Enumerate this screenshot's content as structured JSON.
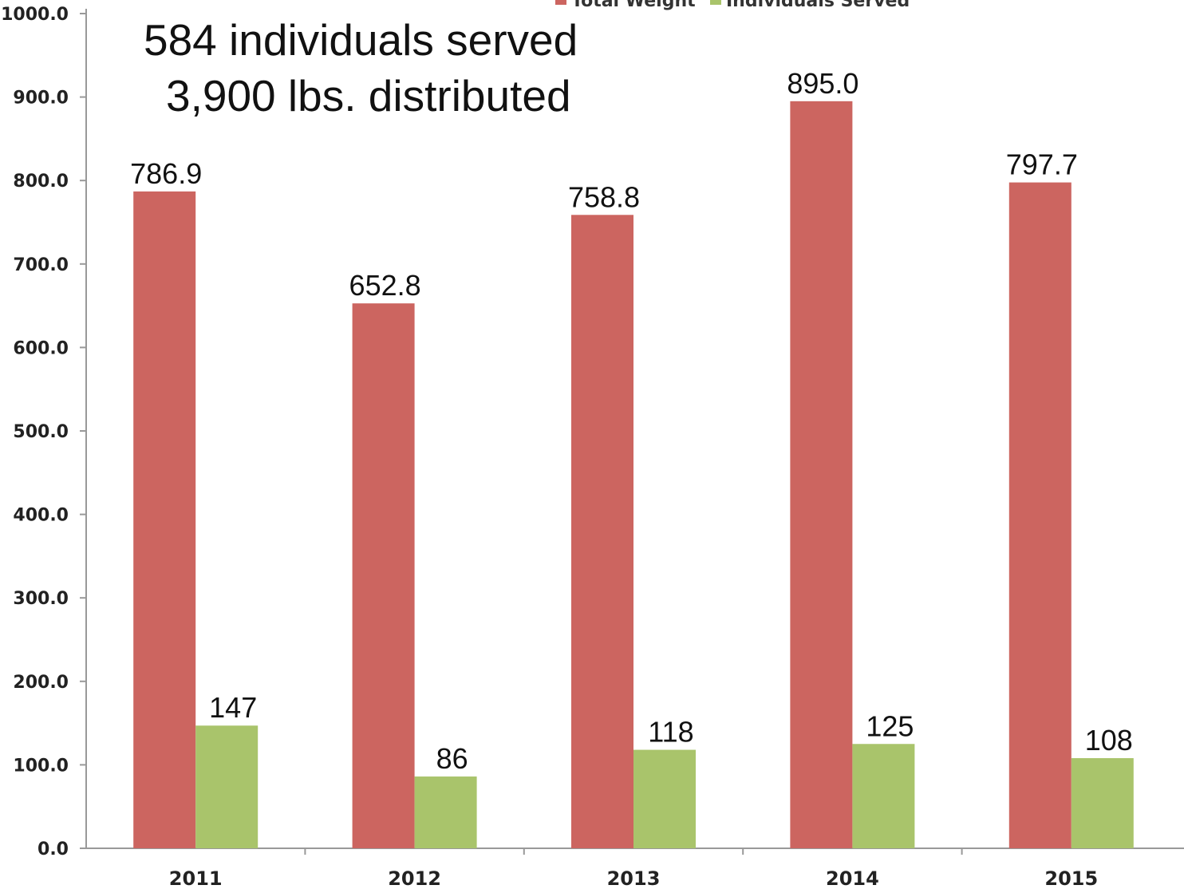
{
  "annotation": {
    "line1": "584 individuals served",
    "line2": "3,900 lbs. distributed"
  },
  "colors": {
    "total_weight": "#cc6560",
    "individuals_served": "#a9c46b",
    "axis": "#999999"
  },
  "chart_data": {
    "type": "bar",
    "categories": [
      "2011",
      "2012",
      "2013",
      "2014",
      "2015"
    ],
    "series": [
      {
        "name": "Total Weight",
        "values": [
          786.9,
          652.8,
          758.8,
          895.0,
          797.7
        ],
        "labels": [
          "786.9",
          "652.8",
          "758.8",
          "895.0",
          "797.7"
        ]
      },
      {
        "name": "Individuals Served",
        "values": [
          147,
          86,
          118,
          125,
          108
        ],
        "labels": [
          "147",
          "86",
          "118",
          "125",
          "108"
        ]
      }
    ],
    "ylim": [
      0,
      1000
    ],
    "yticks": [
      "0.0",
      "100.0",
      "200.0",
      "300.0",
      "400.0",
      "500.0",
      "600.0",
      "700.0",
      "800.0",
      "900.0",
      "1000.0"
    ],
    "legend_position": "top",
    "grid": false
  }
}
